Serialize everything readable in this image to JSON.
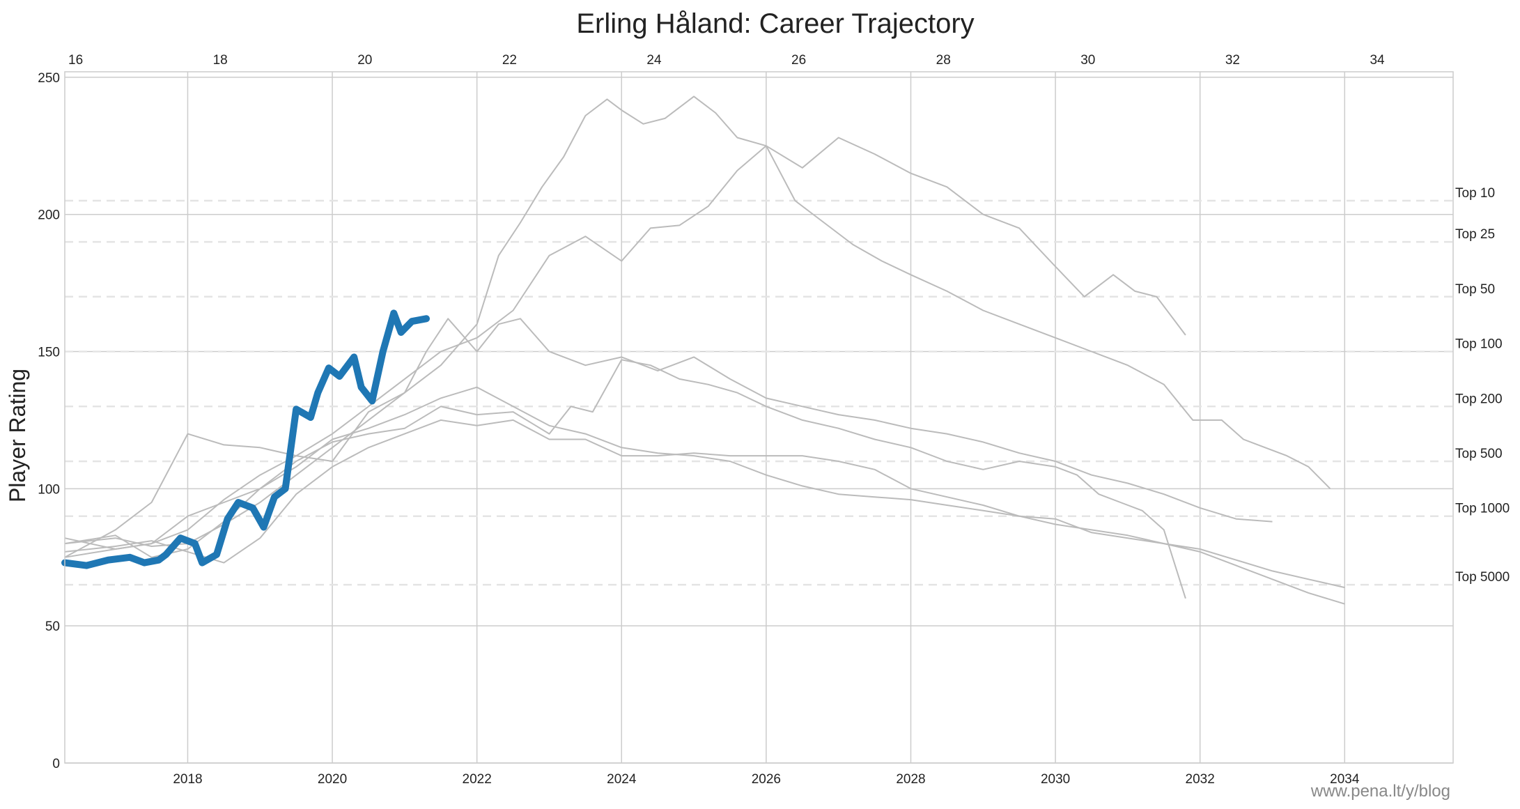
{
  "chart_data": {
    "type": "line",
    "title": "Erling Håland: Career Trajectory",
    "ylabel": "Player Rating",
    "xlabel": "",
    "watermark": "www.pena.lt/y/blog",
    "xlim": [
      2016.3,
      2035.5
    ],
    "ylim": [
      0,
      252
    ],
    "x_ticks": [
      "2018",
      "2020",
      "2022",
      "2024",
      "2026",
      "2028",
      "2030",
      "2032",
      "2034"
    ],
    "y_ticks": [
      "0",
      "50",
      "100",
      "150",
      "200",
      "250"
    ],
    "age_axis": {
      "position": "top",
      "first_label_year": 2016.45,
      "first_label_age": 16,
      "ticks": [
        "16",
        "18",
        "20",
        "22",
        "24",
        "26",
        "28",
        "30",
        "32",
        "34"
      ]
    },
    "grid": true,
    "tiers": [
      {
        "label": "Top 10",
        "value": 205
      },
      {
        "label": "Top 25",
        "value": 190
      },
      {
        "label": "Top 50",
        "value": 170
      },
      {
        "label": "Top 100",
        "value": 150
      },
      {
        "label": "Top 200",
        "value": 130
      },
      {
        "label": "Top 500",
        "value": 110
      },
      {
        "label": "Top 1000",
        "value": 90
      },
      {
        "label": "Top 5000",
        "value": 65
      }
    ],
    "main_series": {
      "color": "#1f77b4",
      "x": [
        2016.3,
        2016.6,
        2016.9,
        2017.2,
        2017.4,
        2017.6,
        2017.7,
        2017.9,
        2018.1,
        2018.2,
        2018.4,
        2018.55,
        2018.7,
        2018.9,
        2019.05,
        2019.2,
        2019.35,
        2019.5,
        2019.7,
        2019.8,
        2019.95,
        2020.1,
        2020.3,
        2020.4,
        2020.55,
        2020.7,
        2020.85,
        2020.95,
        2021.1,
        2021.3
      ],
      "y": [
        73,
        72,
        74,
        75,
        73,
        74,
        76,
        82,
        80,
        73,
        76,
        89,
        95,
        93,
        86,
        97,
        100,
        129,
        126,
        135,
        144,
        141,
        148,
        137,
        132,
        150,
        164,
        157,
        161,
        162
      ]
    },
    "comparison_series": [
      {
        "color": "#bbbbbb",
        "x": [
          2016.3,
          2017.0,
          2017.5,
          2018.0,
          2018.5,
          2019.0,
          2019.5,
          2020.0,
          2020.5,
          2021.0,
          2021.5,
          2022.0,
          2022.3,
          2022.6,
          2022.9,
          2023.2,
          2023.5,
          2023.8,
          2024.0,
          2024.3,
          2024.6,
          2025.0,
          2025.3,
          2025.6,
          2026.0,
          2026.5,
          2027.0,
          2027.5,
          2028.0,
          2028.5,
          2029.0,
          2029.5,
          2030.0,
          2030.4,
          2030.8,
          2031.1,
          2031.4,
          2031.8
        ],
        "y": [
          80,
          82,
          79,
          80,
          87,
          95,
          105,
          115,
          125,
          135,
          145,
          160,
          185,
          197,
          210,
          221,
          236,
          242,
          238,
          233,
          235,
          243,
          237,
          228,
          225,
          217,
          228,
          222,
          215,
          210,
          200,
          195,
          181,
          170,
          178,
          172,
          170,
          156
        ]
      },
      {
        "color": "#bbbbbb",
        "x": [
          2016.3,
          2017.0,
          2017.5,
          2018.0,
          2018.5,
          2019.0,
          2019.5,
          2020.0,
          2020.5,
          2021.0,
          2021.5,
          2022.0,
          2022.5,
          2023.0,
          2023.5,
          2024.0,
          2024.4,
          2024.8,
          2025.2,
          2025.6,
          2026.0,
          2026.4,
          2026.8,
          2027.2,
          2027.6,
          2028.0,
          2028.5,
          2029.0,
          2029.5,
          2030.0,
          2030.5,
          2031.0,
          2031.5,
          2031.9,
          2032.3,
          2032.6,
          2032.9,
          2033.2,
          2033.5,
          2033.8
        ],
        "y": [
          75,
          78,
          80,
          85,
          96,
          105,
          112,
          120,
          130,
          140,
          150,
          155,
          165,
          185,
          192,
          183,
          195,
          196,
          203,
          216,
          225,
          205,
          197,
          189,
          183,
          178,
          172,
          165,
          160,
          155,
          150,
          145,
          138,
          125,
          125,
          118,
          115,
          112,
          108,
          100
        ]
      },
      {
        "color": "#bbbbbb",
        "x": [
          2016.3,
          2017.0,
          2017.5,
          2018.0,
          2018.5,
          2019.0,
          2019.5,
          2020.0,
          2020.5,
          2021.0,
          2021.3,
          2021.6,
          2022.0,
          2022.3,
          2022.6,
          2023.0,
          2023.5,
          2024.0,
          2024.5,
          2025.0,
          2025.5,
          2026.0,
          2026.5,
          2027.0,
          2027.5,
          2028.0,
          2028.5,
          2029.0,
          2029.5,
          2030.0,
          2030.5,
          2031.0,
          2031.5,
          2032.0,
          2032.5,
          2033.0
        ],
        "y": [
          75,
          85,
          95,
          120,
          116,
          115,
          112,
          110,
          128,
          135,
          150,
          162,
          150,
          160,
          162,
          150,
          145,
          148,
          143,
          148,
          140,
          133,
          130,
          127,
          125,
          122,
          120,
          117,
          113,
          110,
          105,
          102,
          98,
          93,
          89,
          88
        ]
      },
      {
        "color": "#bbbbbb",
        "x": [
          2016.3,
          2017.0,
          2017.5,
          2018.0,
          2018.5,
          2019.0,
          2019.5,
          2020.0,
          2020.5,
          2021.0,
          2021.5,
          2022.0,
          2022.5,
          2023.0,
          2023.5,
          2024.0,
          2024.5,
          2025.0,
          2025.5,
          2026.0,
          2026.5,
          2027.0,
          2027.5,
          2028.0,
          2028.5,
          2029.0,
          2029.5,
          2030.0,
          2030.5,
          2031.0,
          2031.5,
          2032.0,
          2032.5,
          2033.0,
          2033.5,
          2034.0
        ],
        "y": [
          82,
          78,
          80,
          90,
          95,
          100,
          108,
          118,
          122,
          127,
          133,
          137,
          130,
          123,
          120,
          115,
          113,
          112,
          110,
          105,
          101,
          98,
          97,
          96,
          94,
          92,
          90,
          89,
          84,
          82,
          80,
          78,
          74,
          70,
          67,
          64
        ]
      },
      {
        "color": "#bbbbbb",
        "x": [
          2016.3,
          2017.0,
          2017.5,
          2018.0,
          2018.5,
          2019.0,
          2019.5,
          2020.0,
          2020.5,
          2021.0,
          2021.5,
          2022.0,
          2022.5,
          2023.0,
          2023.5,
          2024.0,
          2024.5,
          2025.0,
          2025.5,
          2026.0,
          2026.5,
          2027.0,
          2027.5,
          2028.0,
          2028.5,
          2029.0,
          2029.5,
          2030.0,
          2030.5,
          2031.0,
          2031.5,
          2032.0,
          2032.5,
          2033.0,
          2033.5,
          2034.0
        ],
        "y": [
          77,
          79,
          81,
          77,
          73,
          82,
          98,
          108,
          115,
          120,
          125,
          123,
          125,
          118,
          118,
          112,
          112,
          113,
          112,
          112,
          112,
          110,
          107,
          100,
          97,
          94,
          90,
          87,
          85,
          83,
          80,
          77,
          72,
          67,
          62,
          58
        ]
      },
      {
        "color": "#bbbbbb",
        "x": [
          2016.3,
          2017.0,
          2017.5,
          2018.0,
          2018.5,
          2019.0,
          2019.5,
          2020.0,
          2020.5,
          2021.0,
          2021.5,
          2022.0,
          2022.5,
          2023.0,
          2023.3,
          2023.6,
          2024.0,
          2024.4,
          2024.8,
          2025.2,
          2025.6,
          2026.0,
          2026.5,
          2027.0,
          2027.5,
          2028.0,
          2028.5,
          2029.0,
          2029.5,
          2030.0,
          2030.3,
          2030.6,
          2030.9,
          2031.2,
          2031.5,
          2031.8
        ],
        "y": [
          80,
          83,
          75,
          78,
          88,
          100,
          110,
          117,
          120,
          122,
          130,
          127,
          128,
          120,
          130,
          128,
          147,
          145,
          140,
          138,
          135,
          130,
          125,
          122,
          118,
          115,
          110,
          107,
          110,
          108,
          105,
          98,
          95,
          92,
          85,
          60
        ]
      }
    ]
  }
}
